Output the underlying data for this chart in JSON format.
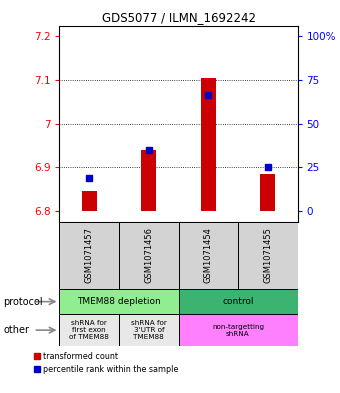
{
  "title": "GDS5077 / ILMN_1692242",
  "samples": [
    "GSM1071457",
    "GSM1071456",
    "GSM1071454",
    "GSM1071455"
  ],
  "red_values": [
    6.845,
    6.94,
    7.105,
    6.885
  ],
  "blue_values": [
    6.875,
    6.94,
    7.065,
    6.9
  ],
  "red_base": 6.8,
  "ylim_min": 6.775,
  "ylim_max": 7.225,
  "left_yticks": [
    6.8,
    6.9,
    7.0,
    7.1,
    7.2
  ],
  "left_ytick_labels": [
    "6.8",
    "6.9",
    "7",
    "7.1",
    "7.2"
  ],
  "right_ytick_positions": [
    6.8,
    6.9,
    7.0,
    7.1,
    7.2
  ],
  "right_ytick_labels": [
    "0",
    "25",
    "50",
    "75",
    "100%"
  ],
  "bar_color": "#CC0000",
  "blue_color": "#0000CC",
  "bg_color": "#D3D3D3",
  "bar_width": 0.25,
  "proto_green_light": "#90EE90",
  "proto_green_dark": "#3CB371",
  "other_light": "#E8E8E8",
  "other_pink": "#FF80FF"
}
